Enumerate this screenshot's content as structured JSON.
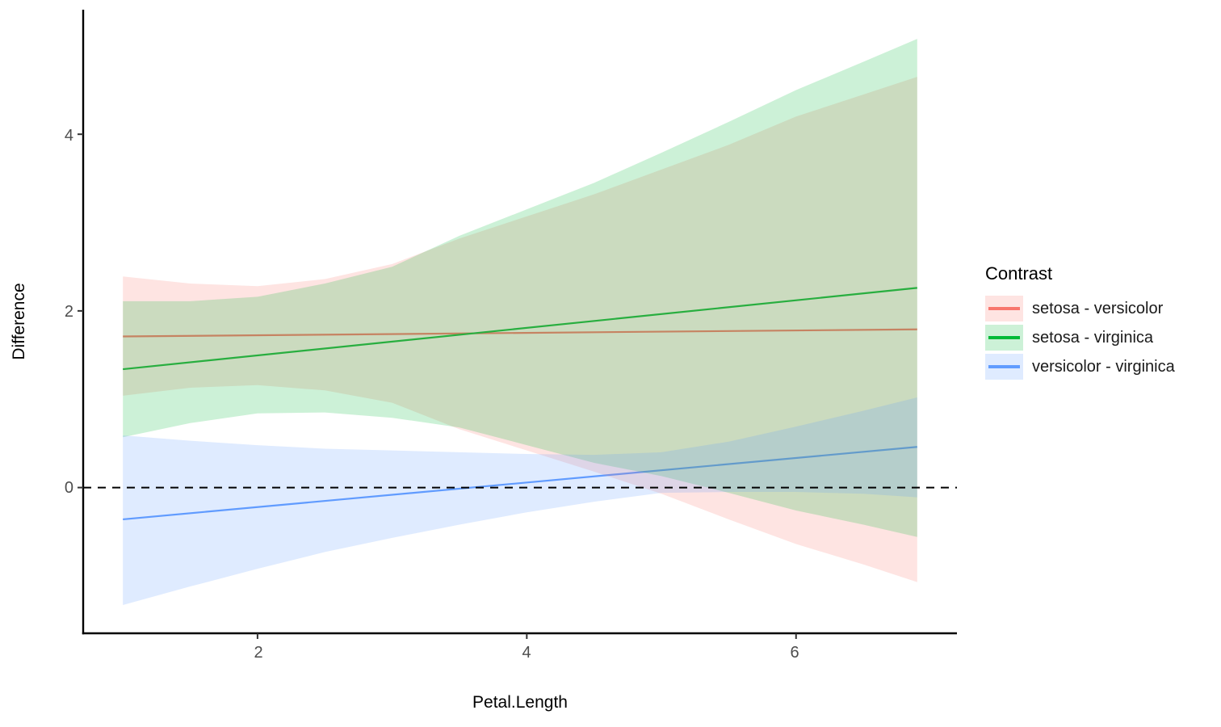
{
  "chart_data": {
    "type": "line",
    "subtype": "lines-with-confidence-ribbons",
    "title": "",
    "xlabel": "Petal.Length",
    "ylabel": "Difference",
    "xlim": [
      0.705,
      7.195
    ],
    "ylim": [
      -1.65,
      5.41
    ],
    "x_data_range": [
      1,
      6.9
    ],
    "x_ticks": [
      2,
      4,
      6
    ],
    "y_ticks": [
      0,
      2,
      4
    ],
    "x_tick_labels": [
      "2",
      "4",
      "6"
    ],
    "y_tick_labels": [
      "0",
      "2",
      "4"
    ],
    "grid": "off",
    "reference_line": {
      "y": 0,
      "style": "dashed",
      "color": "#000000"
    },
    "legend": {
      "title": "Contrast",
      "position": "right"
    },
    "ribbon_alpha": 0.2,
    "sample_x": [
      1,
      1.5,
      2,
      2.5,
      3,
      3.5,
      4,
      4.5,
      5,
      5.5,
      6,
      6.5,
      6.9
    ],
    "series": [
      {
        "name": "setosa - versicolor",
        "color": "#F8766D",
        "line": {
          "intercept": 1.697,
          "slope": 0.0136,
          "value_at_x1": 1.71,
          "value_at_x6_9": 1.79
        },
        "ribbon_upper": [
          2.39,
          2.31,
          2.28,
          2.36,
          2.53,
          2.82,
          3.07,
          3.32,
          3.6,
          3.88,
          4.2,
          4.45,
          4.65
        ],
        "ribbon_lower": [
          1.04,
          1.13,
          1.16,
          1.1,
          0.96,
          0.66,
          0.42,
          0.18,
          -0.07,
          -0.36,
          -0.64,
          -0.87,
          -1.07
        ]
      },
      {
        "name": "setosa - virginica",
        "color": "#00BA38",
        "line": {
          "intercept": 1.184,
          "slope": 0.156,
          "value_at_x1": 1.34,
          "value_at_x6_9": 2.26
        },
        "ribbon_upper": [
          2.11,
          2.11,
          2.16,
          2.31,
          2.5,
          2.85,
          3.15,
          3.45,
          3.79,
          4.14,
          4.5,
          4.82,
          5.08
        ],
        "ribbon_lower": [
          0.57,
          0.73,
          0.84,
          0.85,
          0.79,
          0.68,
          0.48,
          0.28,
          0.13,
          -0.06,
          -0.26,
          -0.42,
          -0.56
        ]
      },
      {
        "name": "versicolor - virginica",
        "color": "#619CFF",
        "line": {
          "intercept": -0.499,
          "slope": 0.139,
          "value_at_x1": -0.36,
          "value_at_x6_9": 0.46
        },
        "ribbon_upper": [
          0.59,
          0.53,
          0.48,
          0.44,
          0.42,
          0.4,
          0.38,
          0.37,
          0.4,
          0.52,
          0.69,
          0.87,
          1.02
        ],
        "ribbon_lower": [
          -1.33,
          -1.12,
          -0.92,
          -0.73,
          -0.57,
          -0.42,
          -0.28,
          -0.16,
          -0.06,
          -0.05,
          -0.05,
          -0.07,
          -0.11
        ]
      }
    ],
    "style": {
      "axis_color": "#000000",
      "tick_label_color": "#4d4d4d",
      "background": "#ffffff"
    }
  }
}
